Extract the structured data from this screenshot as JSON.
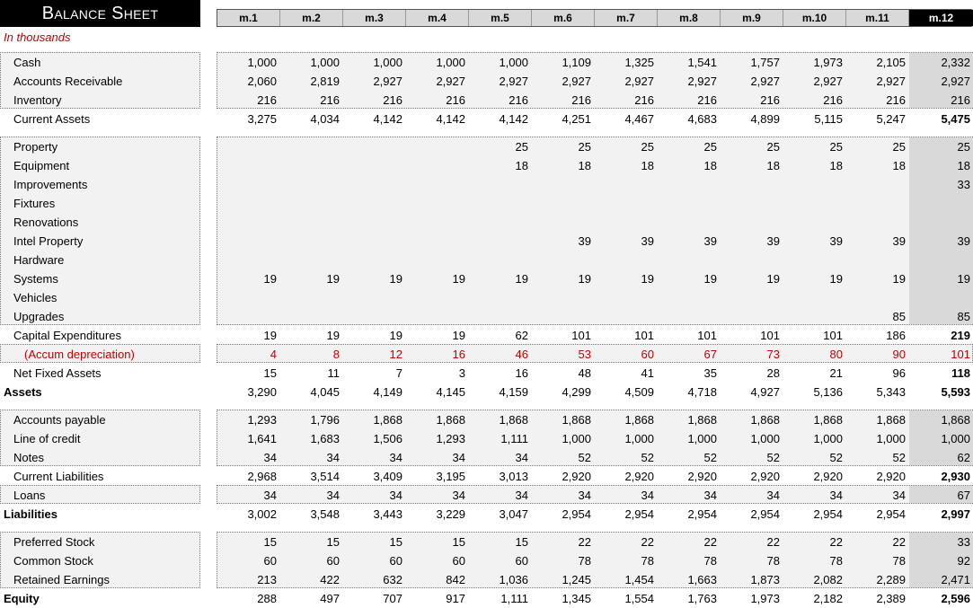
{
  "title": "Balance Sheet",
  "subtitle": "In thousands",
  "months": [
    "m.1",
    "m.2",
    "m.3",
    "m.4",
    "m.5",
    "m.6",
    "m.7",
    "m.8",
    "m.9",
    "m.10",
    "m.11",
    "m.12"
  ],
  "rows": [
    {
      "label": "Cash",
      "values": [
        "1,000",
        "1,000",
        "1,000",
        "1,000",
        "1,000",
        "1,109",
        "1,325",
        "1,541",
        "1,757",
        "1,973",
        "2,105",
        "2,332"
      ]
    },
    {
      "label": "Accounts Receivable",
      "values": [
        "2,060",
        "2,819",
        "2,927",
        "2,927",
        "2,927",
        "2,927",
        "2,927",
        "2,927",
        "2,927",
        "2,927",
        "2,927",
        "2,927"
      ]
    },
    {
      "label": "Inventory",
      "values": [
        "216",
        "216",
        "216",
        "216",
        "216",
        "216",
        "216",
        "216",
        "216",
        "216",
        "216",
        "216"
      ]
    },
    {
      "label": "Current Assets",
      "values": [
        "3,275",
        "4,034",
        "4,142",
        "4,142",
        "4,142",
        "4,251",
        "4,467",
        "4,683",
        "4,899",
        "5,115",
        "5,247",
        "5,475"
      ]
    },
    {
      "label": "Property",
      "values": [
        "",
        "",
        "",
        "",
        "25",
        "25",
        "25",
        "25",
        "25",
        "25",
        "25",
        "25"
      ]
    },
    {
      "label": "Equipment",
      "values": [
        "",
        "",
        "",
        "",
        "18",
        "18",
        "18",
        "18",
        "18",
        "18",
        "18",
        "18"
      ]
    },
    {
      "label": "Improvements",
      "values": [
        "",
        "",
        "",
        "",
        "",
        "",
        "",
        "",
        "",
        "",
        "",
        "33"
      ]
    },
    {
      "label": "Fixtures",
      "values": [
        "",
        "",
        "",
        "",
        "",
        "",
        "",
        "",
        "",
        "",
        "",
        ""
      ]
    },
    {
      "label": "Renovations",
      "values": [
        "",
        "",
        "",
        "",
        "",
        "",
        "",
        "",
        "",
        "",
        "",
        ""
      ]
    },
    {
      "label": "Intel Property",
      "values": [
        "",
        "",
        "",
        "",
        "",
        "39",
        "39",
        "39",
        "39",
        "39",
        "39",
        "39"
      ]
    },
    {
      "label": "Hardware",
      "values": [
        "",
        "",
        "",
        "",
        "",
        "",
        "",
        "",
        "",
        "",
        "",
        ""
      ]
    },
    {
      "label": "Systems",
      "values": [
        "19",
        "19",
        "19",
        "19",
        "19",
        "19",
        "19",
        "19",
        "19",
        "19",
        "19",
        "19"
      ]
    },
    {
      "label": "Vehicles",
      "values": [
        "",
        "",
        "",
        "",
        "",
        "",
        "",
        "",
        "",
        "",
        "",
        ""
      ]
    },
    {
      "label": "Upgrades",
      "values": [
        "",
        "",
        "",
        "",
        "",
        "",
        "",
        "",
        "",
        "",
        "85",
        "85"
      ]
    },
    {
      "label": "Capital Expenditures",
      "values": [
        "19",
        "19",
        "19",
        "19",
        "62",
        "101",
        "101",
        "101",
        "101",
        "101",
        "186",
        "219"
      ]
    },
    {
      "label": "(Accum depreciation)",
      "values": [
        "4",
        "8",
        "12",
        "16",
        "46",
        "53",
        "60",
        "67",
        "73",
        "80",
        "90",
        "101"
      ]
    },
    {
      "label": "Net Fixed Assets",
      "values": [
        "15",
        "11",
        "7",
        "3",
        "16",
        "48",
        "41",
        "35",
        "28",
        "21",
        "96",
        "118"
      ]
    },
    {
      "label": "Assets",
      "values": [
        "3,290",
        "4,045",
        "4,149",
        "4,145",
        "4,159",
        "4,299",
        "4,509",
        "4,718",
        "4,927",
        "5,136",
        "5,343",
        "5,593"
      ]
    },
    {
      "label": "Accounts payable",
      "values": [
        "1,293",
        "1,796",
        "1,868",
        "1,868",
        "1,868",
        "1,868",
        "1,868",
        "1,868",
        "1,868",
        "1,868",
        "1,868",
        "1,868"
      ]
    },
    {
      "label": "Line of credit",
      "values": [
        "1,641",
        "1,683",
        "1,506",
        "1,293",
        "1,111",
        "1,000",
        "1,000",
        "1,000",
        "1,000",
        "1,000",
        "1,000",
        "1,000"
      ]
    },
    {
      "label": "Notes",
      "values": [
        "34",
        "34",
        "34",
        "34",
        "34",
        "52",
        "52",
        "52",
        "52",
        "52",
        "52",
        "62"
      ]
    },
    {
      "label": "Current Liabilities",
      "values": [
        "2,968",
        "3,514",
        "3,409",
        "3,195",
        "3,013",
        "2,920",
        "2,920",
        "2,920",
        "2,920",
        "2,920",
        "2,920",
        "2,930"
      ]
    },
    {
      "label": "Loans",
      "values": [
        "34",
        "34",
        "34",
        "34",
        "34",
        "34",
        "34",
        "34",
        "34",
        "34",
        "34",
        "67"
      ]
    },
    {
      "label": "Liabilities",
      "values": [
        "3,002",
        "3,548",
        "3,443",
        "3,229",
        "3,047",
        "2,954",
        "2,954",
        "2,954",
        "2,954",
        "2,954",
        "2,954",
        "2,997"
      ]
    },
    {
      "label": "Preferred Stock",
      "values": [
        "15",
        "15",
        "15",
        "15",
        "15",
        "22",
        "22",
        "22",
        "22",
        "22",
        "22",
        "33"
      ]
    },
    {
      "label": "Common Stock",
      "values": [
        "60",
        "60",
        "60",
        "60",
        "60",
        "78",
        "78",
        "78",
        "78",
        "78",
        "78",
        "92"
      ]
    },
    {
      "label": "Retained Earnings",
      "values": [
        "213",
        "422",
        "632",
        "842",
        "1,036",
        "1,245",
        "1,454",
        "1,663",
        "1,873",
        "2,082",
        "2,289",
        "2,471"
      ]
    },
    {
      "label": "Equity",
      "values": [
        "288",
        "497",
        "707",
        "917",
        "1,111",
        "1,345",
        "1,554",
        "1,763",
        "1,973",
        "2,182",
        "2,389",
        "2,596"
      ]
    }
  ]
}
